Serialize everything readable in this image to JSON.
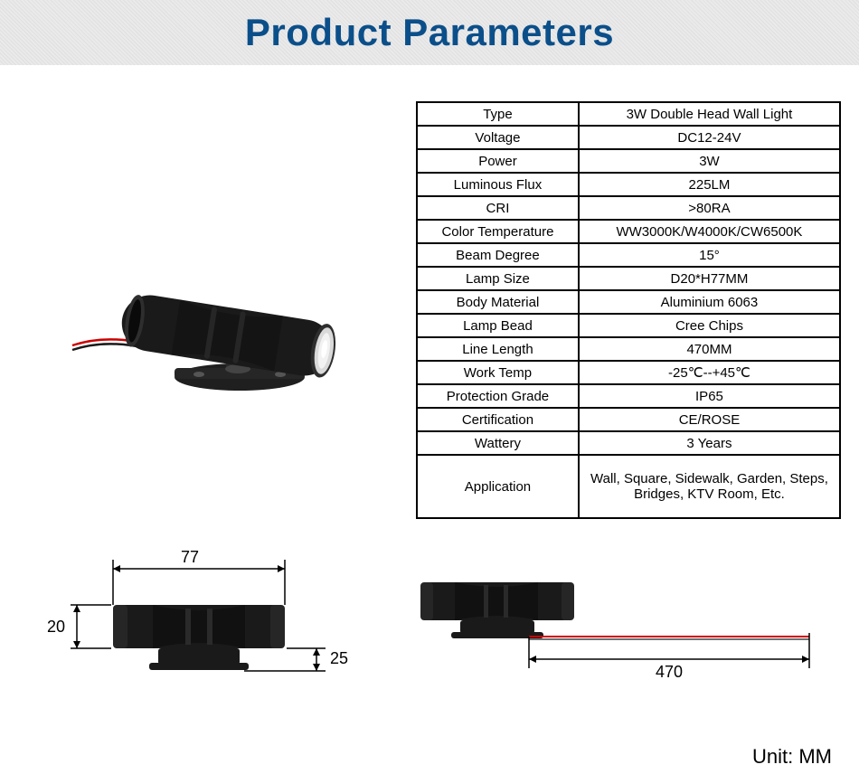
{
  "header": {
    "title": "Product Parameters",
    "title_color": "#0b4f8a",
    "title_fontsize": 42,
    "band_bg": "#e8e8e8"
  },
  "spec_table": {
    "border_color": "#000000",
    "rows": [
      {
        "label": "Type",
        "value": "3W Double Head Wall Light"
      },
      {
        "label": "Voltage",
        "value": "DC12-24V"
      },
      {
        "label": "Power",
        "value": "3W"
      },
      {
        "label": "Luminous Flux",
        "value": "225LM"
      },
      {
        "label": "CRI",
        "value": ">80RA"
      },
      {
        "label": "Color Temperature",
        "value": "WW3000K/W4000K/CW6500K"
      },
      {
        "label": "Beam Degree",
        "value": "15°"
      },
      {
        "label": "Lamp Size",
        "value": "D20*H77MM"
      },
      {
        "label": "Body Material",
        "value": "Aluminium 6063"
      },
      {
        "label": "Lamp Bead",
        "value": "Cree Chips"
      },
      {
        "label": "Line Length",
        "value": "470MM"
      },
      {
        "label": "Work Temp",
        "value": "-25℃--+45℃"
      },
      {
        "label": "Protection Grade",
        "value": "IP65"
      },
      {
        "label": "Certification",
        "value": "CE/ROSE"
      },
      {
        "label": "Wattery",
        "value": "3 Years"
      },
      {
        "label": "Application",
        "value": "Wall, Square, Sidewalk, Garden, Steps, Bridges, KTV Room, Etc.",
        "tall": true
      }
    ]
  },
  "diagrams": {
    "unit_label": "Unit: MM",
    "left": {
      "length_label": "77",
      "diameter_label": "20",
      "base_height_label": "25"
    },
    "right": {
      "wire_length_label": "470",
      "wire_color": "#cc0000"
    }
  },
  "product_image": {
    "body_color": "#1a1a1a",
    "lens_color": "#d9d9d9",
    "wire_colors": [
      "#cc0000",
      "#1a1a1a"
    ]
  }
}
